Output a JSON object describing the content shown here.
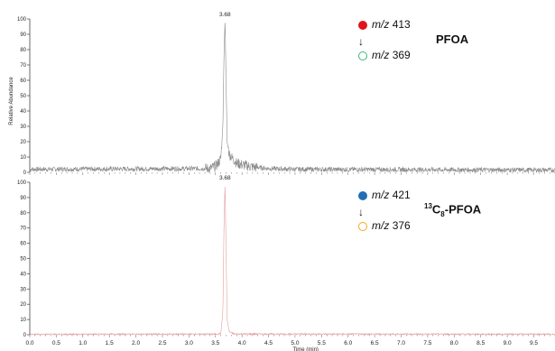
{
  "chart_data": {
    "type": "line",
    "shared_x_axis": {
      "label": "Time (min)",
      "range": [
        0.0,
        9.9
      ],
      "ticks": [
        "0.0",
        "0.5",
        "1.0",
        "1.5",
        "2.0",
        "2.5",
        "3.0",
        "3.5",
        "4.0",
        "4.5",
        "5.0",
        "5.5",
        "6.0",
        "6.5",
        "7.0",
        "7.5",
        "8.0",
        "8.5",
        "9.0",
        "9.5"
      ]
    },
    "y_axis": {
      "label": "Relative Abundance",
      "range": [
        0,
        100
      ],
      "ticks": [
        "0",
        "10",
        "20",
        "30",
        "40",
        "50",
        "60",
        "70",
        "80",
        "90",
        "100"
      ]
    },
    "panels": [
      {
        "compound": "PFOA",
        "peak_label": "3.68",
        "peak_time": 3.68,
        "trace_color": "#8a8a8a",
        "legend": {
          "precursor": {
            "prefix": "m/z",
            "value": "413",
            "color": "#e0141c",
            "filled": true
          },
          "product": {
            "prefix": "m/z",
            "value": "369",
            "color": "#3cb878",
            "filled": false
          }
        },
        "x": [
          0.0,
          3.4,
          3.5,
          3.55,
          3.6,
          3.64,
          3.66,
          3.68,
          3.7,
          3.72,
          3.76,
          3.8,
          3.85,
          3.9,
          4.0,
          4.2,
          4.5,
          5.0,
          9.9
        ],
        "y": [
          2,
          2.5,
          4,
          6,
          9,
          30,
          75,
          100,
          60,
          20,
          12,
          10,
          8,
          6,
          5,
          3.5,
          2.5,
          2,
          1.5
        ]
      },
      {
        "compound_parts": {
          "sup": "13",
          "base": "C",
          "sub": "8",
          "rest": "-PFOA"
        },
        "peak_label": "3.68",
        "peak_time": 3.68,
        "trace_color": "#e3a0a0",
        "legend": {
          "precursor": {
            "prefix": "m/z",
            "value": "421",
            "color": "#1f6fb5",
            "filled": true
          },
          "product": {
            "prefix": "m/z",
            "value": "376",
            "color": "#f5a623",
            "filled": false
          }
        },
        "x": [
          0.0,
          3.55,
          3.6,
          3.64,
          3.66,
          3.68,
          3.7,
          3.72,
          3.76,
          3.85,
          9.9
        ],
        "y": [
          0.3,
          0.4,
          0.8,
          15,
          70,
          100,
          55,
          10,
          2,
          0.5,
          0.3
        ]
      }
    ]
  },
  "arrow_glyph": "↓"
}
